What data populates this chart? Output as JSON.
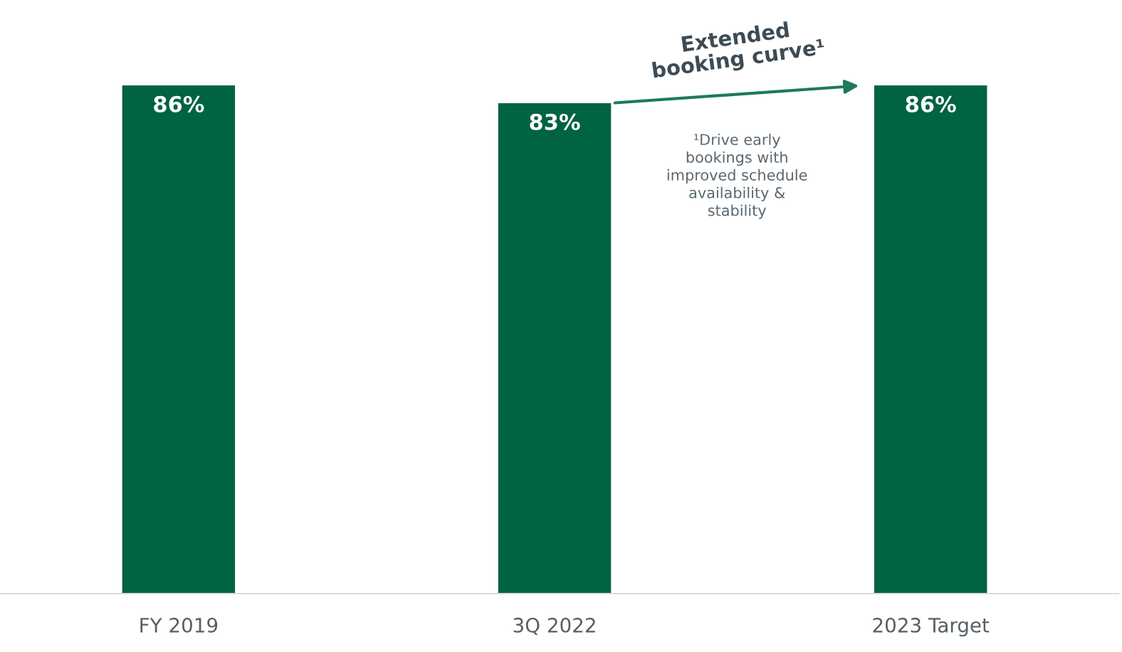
{
  "chart_data": {
    "type": "bar",
    "categories": [
      "FY 2019",
      "3Q 2022",
      "2023 Target"
    ],
    "values": [
      86,
      83,
      86
    ],
    "value_labels": [
      "86%",
      "83%",
      "86%"
    ],
    "color": "#006341",
    "grid": false,
    "annotations": [
      "Extended\nbooking curve¹",
      "¹Drive early\nbookings with\nimproved schedule\navailability &\nstability"
    ]
  }
}
